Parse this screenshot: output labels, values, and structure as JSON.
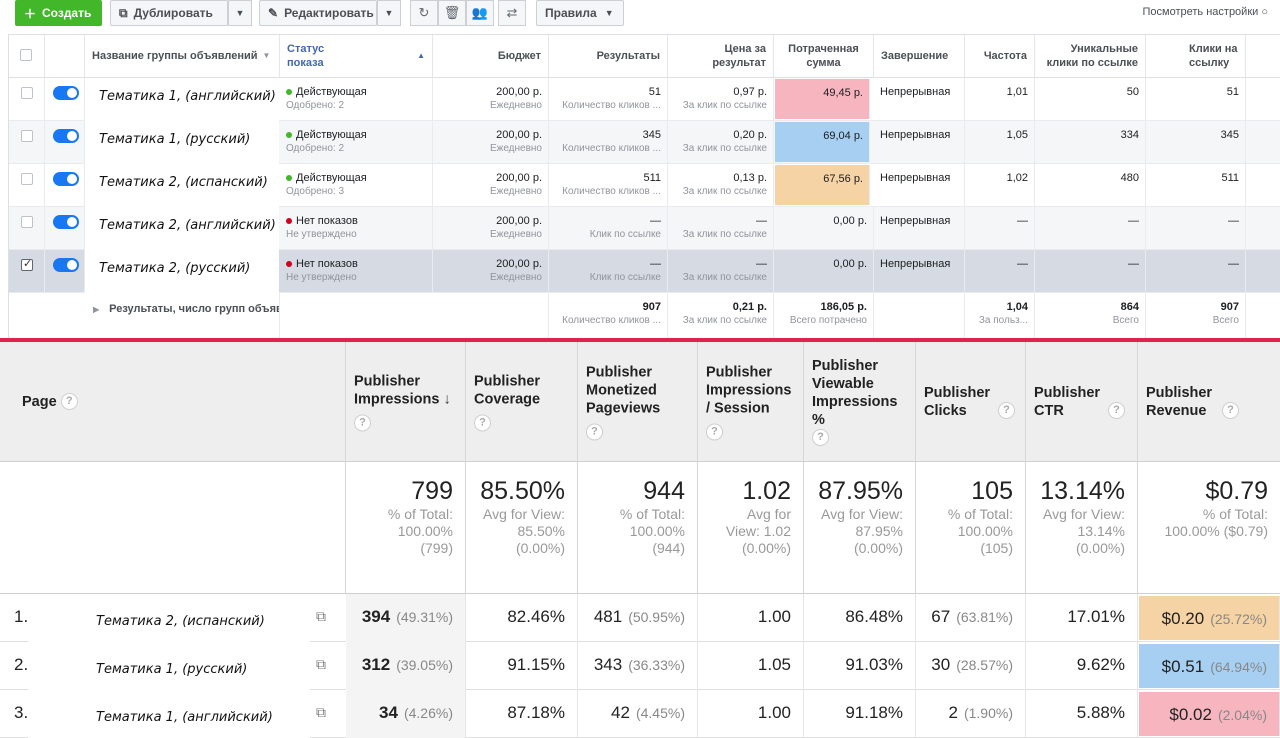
{
  "fb": {
    "toolbar": {
      "create": "Создать",
      "duplicate": "Дублировать",
      "edit": "Редактировать",
      "rules": "Правила",
      "view_settings": "Посмотреть настройки"
    },
    "headers": {
      "name": "Название группы объявлений",
      "status": "Статус показа",
      "budget": "Бюджет",
      "results": "Результаты",
      "cost": "Цена за результат",
      "spent": "Потраченная сумма",
      "end": "Завершение",
      "freq": "Частота",
      "unique": "Уникальные клики по ссылке",
      "clicks": "Клики на ссылку"
    },
    "rows": [
      {
        "name": "Тематика 1, (английский)",
        "status": "Действующая",
        "status_sub": "Одобрено: 2",
        "dot": "green",
        "budget": "200,00 р.",
        "budget_sub": "Ежедневно",
        "results": "51",
        "results_sub": "Количество кликов ...",
        "cost": "0,97 р.",
        "cost_sub": "За клик по ссылке",
        "spent": "49,45 р.",
        "end": "Непрерывная",
        "freq": "1,01",
        "unique": "50",
        "clicks": "51",
        "checked": false
      },
      {
        "name": "Тематика 1, (русский)",
        "status": "Действующая",
        "status_sub": "Одобрено: 2",
        "dot": "green",
        "budget": "200,00 р.",
        "budget_sub": "Ежедневно",
        "results": "345",
        "results_sub": "Количество кликов ...",
        "cost": "0,20 р.",
        "cost_sub": "За клик по ссылке",
        "spent": "69,04 р.",
        "end": "Непрерывная",
        "freq": "1,05",
        "unique": "334",
        "clicks": "345",
        "checked": false
      },
      {
        "name": "Тематика 2, (испанский)",
        "status": "Действующая",
        "status_sub": "Одобрено: 3",
        "dot": "green",
        "budget": "200,00 р.",
        "budget_sub": "Ежедневно",
        "results": "511",
        "results_sub": "Количество кликов ...",
        "cost": "0,13 р.",
        "cost_sub": "За клик по ссылке",
        "spent": "67,56 р.",
        "end": "Непрерывная",
        "freq": "1,02",
        "unique": "480",
        "clicks": "511",
        "checked": false
      },
      {
        "name": "Тематика 2, (английский)",
        "status": "Нет показов",
        "status_sub": "Не утверждено",
        "dot": "red",
        "budget": "200,00 р.",
        "budget_sub": "Ежедневно",
        "results": "—",
        "results_sub": "Клик по ссылке",
        "cost": "—",
        "cost_sub": "За клик по ссылке",
        "spent": "0,00 р.",
        "end": "Непрерывная",
        "freq": "—",
        "unique": "—",
        "clicks": "—",
        "checked": false
      },
      {
        "name": "Тематика 2, (русский)",
        "status": "Нет показов",
        "status_sub": "Не утверждено",
        "dot": "red",
        "budget": "200,00 р.",
        "budget_sub": "Ежедневно",
        "results": "—",
        "results_sub": "Клик по ссылке",
        "cost": "—",
        "cost_sub": "За клик по ссылке",
        "spent": "0,00 р.",
        "end": "Непрерывная",
        "freq": "—",
        "unique": "—",
        "clicks": "—",
        "checked": true
      }
    ],
    "summary": {
      "label": "Результаты, число групп объявлений",
      "results": "907",
      "results_sub": "Количество кликов ...",
      "cost": "0,21 р.",
      "cost_sub": "За клик по ссылке",
      "spent": "186,05 р.",
      "spent_sub": "Всего потрачено",
      "freq": "1,04",
      "freq_sub": "За польз...",
      "unique": "864",
      "unique_sub": "Всего",
      "clicks": "907",
      "clicks_sub": "Всего"
    },
    "highlight_colors": {
      "red": "#f7b6bf",
      "blue": "#a7cff1",
      "orange": "#f5d3a4"
    }
  },
  "ga": {
    "headers": {
      "page": "Page",
      "impressions": "Publisher Impressions",
      "coverage": "Publisher Coverage",
      "monetized": "Publisher Monetized Pageviews",
      "imp_session": "Publisher Impressions / Session",
      "viewable": "Publisher Viewable Impressions %",
      "clicks": "Publisher Clicks",
      "ctr": "Publisher CTR",
      "revenue": "Publisher Revenue"
    },
    "totals": {
      "impressions": {
        "big": "799",
        "l1": "% of Total:",
        "l2": "100.00%",
        "l3": "(799)"
      },
      "coverage": {
        "big": "85.50%",
        "l1": "Avg for View:",
        "l2": "85.50%",
        "l3": "(0.00%)"
      },
      "monetized": {
        "big": "944",
        "l1": "% of Total:",
        "l2": "100.00%",
        "l3": "(944)"
      },
      "imp_session": {
        "big": "1.02",
        "l1": "Avg for",
        "l2": "View: 1.02",
        "l3": "(0.00%)"
      },
      "viewable": {
        "big": "87.95%",
        "l1": "Avg for View:",
        "l2": "87.95%",
        "l3": "(0.00%)"
      },
      "clicks": {
        "big": "105",
        "l1": "% of Total:",
        "l2": "100.00%",
        "l3": "(105)"
      },
      "ctr": {
        "big": "13.14%",
        "l1": "Avg for View:",
        "l2": "13.14%",
        "l3": "(0.00%)"
      },
      "revenue": {
        "big": "$0.79",
        "l1": "% of Total:",
        "l2": "100.00% ($0.79)",
        "l3": ""
      }
    },
    "rows": [
      {
        "idx": "1.",
        "name": "Тематика 2, (испанский)",
        "impressions": "394",
        "impressions_pct": "(49.31%)",
        "coverage": "82.46%",
        "monetized": "481",
        "monetized_pct": "(50.95%)",
        "imp_session": "1.00",
        "viewable": "86.48%",
        "clicks": "67",
        "clicks_pct": "(63.81%)",
        "ctr": "17.01%",
        "revenue": "$0.20",
        "revenue_pct": "(25.72%)",
        "color": "orange"
      },
      {
        "idx": "2.",
        "name": "Тематика 1, (русский)",
        "impressions": "312",
        "impressions_pct": "(39.05%)",
        "coverage": "91.15%",
        "monetized": "343",
        "monetized_pct": "(36.33%)",
        "imp_session": "1.05",
        "viewable": "91.03%",
        "clicks": "30",
        "clicks_pct": "(28.57%)",
        "ctr": "9.62%",
        "revenue": "$0.51",
        "revenue_pct": "(64.94%)",
        "color": "blue"
      },
      {
        "idx": "3.",
        "name": "Тематика 1, (английский)",
        "impressions": "34",
        "impressions_pct": "(4.26%)",
        "coverage": "87.18%",
        "monetized": "42",
        "monetized_pct": "(4.45%)",
        "imp_session": "1.00",
        "viewable": "91.18%",
        "clicks": "2",
        "clicks_pct": "(1.90%)",
        "ctr": "5.88%",
        "revenue": "$0.02",
        "revenue_pct": "(2.04%)",
        "color": "red"
      }
    ]
  }
}
